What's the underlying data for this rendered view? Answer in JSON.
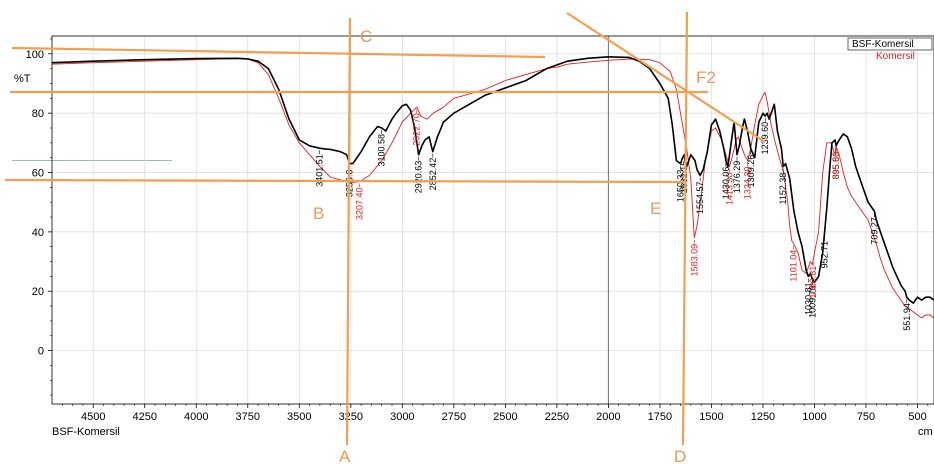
{
  "chart_data": {
    "type": "line",
    "title": "",
    "xlabel": "cm",
    "ylabel": "%T",
    "xlim": [
      4700,
      420
    ],
    "ylim": [
      -18,
      106
    ],
    "x_reversed": true,
    "grid": true,
    "bottom_label": "BSF-Komersil",
    "y_ticks": [
      "100",
      "80",
      "60",
      "40",
      "20",
      "0"
    ],
    "x_ticks": [
      "4500",
      "4250",
      "4000",
      "3750",
      "3500",
      "3250",
      "3000",
      "2750",
      "2500",
      "2250",
      "2000",
      "1750",
      "1500",
      "1250",
      "1000",
      "750",
      "500"
    ],
    "legend": {
      "position": "top-right",
      "entries": [
        "BSF-Komersil",
        "Komersil"
      ]
    },
    "series": [
      {
        "name": "BSF-Komersil",
        "color": "#000000",
        "x": [
          4700,
          4500,
          4250,
          4000,
          3800,
          3750,
          3700,
          3650,
          3600,
          3550,
          3500,
          3450,
          3420,
          3401,
          3380,
          3350,
          3300,
          3270,
          3256,
          3240,
          3200,
          3160,
          3120,
          3100,
          3080,
          3050,
          3030,
          3000,
          2980,
          2960,
          2940,
          2921,
          2905,
          2890,
          2870,
          2852,
          2830,
          2800,
          2750,
          2600,
          2400,
          2300,
          2200,
          2100,
          2000,
          1900,
          1850,
          1800,
          1750,
          1710,
          1690,
          1670,
          1650,
          1640,
          1632,
          1620,
          1600,
          1580,
          1570,
          1555,
          1540,
          1520,
          1500,
          1480,
          1460,
          1440,
          1430,
          1420,
          1400,
          1390,
          1376,
          1365,
          1350,
          1340,
          1325,
          1309,
          1290,
          1270,
          1250,
          1240,
          1230,
          1220,
          1210,
          1195,
          1180,
          1160,
          1152,
          1140,
          1120,
          1100,
          1080,
          1060,
          1040,
          1030,
          1020,
          1010,
          1000,
          980,
          960,
          940,
          925,
          915,
          900,
          895,
          880,
          860,
          840,
          820,
          800,
          780,
          760,
          740,
          720,
          709,
          700,
          680,
          660,
          640,
          620,
          600,
          580,
          560,
          552,
          540,
          520,
          500,
          480,
          460,
          440,
          420
        ],
        "values": [
          97,
          97.5,
          98,
          98.4,
          98.5,
          98.3,
          97.5,
          95,
          88,
          78,
          71,
          69,
          68.5,
          68.2,
          68,
          67.8,
          67,
          66,
          63,
          63,
          67,
          72,
          75.5,
          75,
          74,
          78,
          80,
          82.5,
          83,
          81,
          75,
          66,
          69,
          71,
          72,
          67,
          72,
          77,
          80,
          86,
          91,
          95,
          97.5,
          98.5,
          99,
          98.8,
          97.5,
          95,
          90,
          85,
          76,
          64,
          63,
          65,
          66,
          62,
          66,
          64,
          61,
          59,
          61,
          67,
          76,
          78,
          74,
          68,
          64,
          62,
          72,
          77,
          66,
          69,
          75,
          78,
          74,
          68,
          65,
          77,
          80,
          79,
          80,
          78,
          80,
          83,
          74,
          68,
          62,
          63,
          58,
          47,
          40,
          35,
          27,
          25,
          26,
          24,
          23,
          25,
          33,
          48,
          62,
          70,
          71,
          69,
          71,
          73,
          72,
          68,
          62,
          58,
          54,
          50,
          48,
          47,
          44,
          40,
          36,
          32,
          28,
          25,
          22,
          20,
          18,
          17,
          16,
          18,
          17,
          18,
          18,
          17
        ]
      },
      {
        "name": "Komersil",
        "color": "#e02020",
        "x": [
          4700,
          4500,
          4250,
          4000,
          3800,
          3750,
          3700,
          3650,
          3600,
          3550,
          3500,
          3450,
          3400,
          3350,
          3300,
          3250,
          3207,
          3160,
          3100,
          3050,
          3000,
          2960,
          2930,
          2910,
          2880,
          2850,
          2800,
          2750,
          2700,
          2600,
          2500,
          2400,
          2300,
          2250,
          2200,
          2100,
          2000,
          1900,
          1800,
          1750,
          1700,
          1670,
          1650,
          1620,
          1600,
          1583,
          1570,
          1550,
          1530,
          1500,
          1480,
          1450,
          1430,
          1413,
          1400,
          1380,
          1370,
          1350,
          1340,
          1324,
          1310,
          1290,
          1270,
          1250,
          1240,
          1230,
          1210,
          1190,
          1170,
          1150,
          1130,
          1120,
          1110,
          1101,
          1080,
          1060,
          1040,
          1030,
          1020,
          1010,
          1000,
          980,
          960,
          940,
          920,
          900,
          896,
          880,
          860,
          840,
          820,
          800,
          780,
          760,
          740,
          720,
          700,
          680,
          660,
          640,
          620,
          600,
          580,
          560,
          540,
          520,
          500,
          480,
          460,
          440,
          420
        ],
        "values": [
          96.5,
          97,
          97.5,
          98,
          98.4,
          98.2,
          97,
          93,
          85,
          76,
          70,
          66,
          62,
          58.5,
          57.5,
          56.5,
          57,
          59,
          64,
          70,
          77,
          80,
          82,
          79,
          78,
          80,
          82,
          85,
          86,
          88,
          91,
          93,
          95,
          95.5,
          96.5,
          97.2,
          97.8,
          98.2,
          98,
          97,
          94,
          88,
          80,
          68,
          58,
          38,
          42,
          52,
          64,
          74,
          75,
          71,
          66,
          62,
          65,
          71,
          72,
          68,
          66,
          64,
          68,
          76,
          83,
          86,
          87,
          84,
          76,
          70,
          65,
          60,
          50,
          42,
          37,
          36,
          33,
          27,
          26,
          28,
          30,
          29,
          33,
          40,
          60,
          70,
          70,
          66,
          69,
          66,
          60,
          55,
          52,
          50,
          48,
          46,
          44,
          40,
          36,
          31,
          27,
          24,
          21,
          19,
          17,
          15,
          14,
          13,
          12,
          11,
          12,
          12,
          11
        ]
      }
    ],
    "peak_labels": [
      {
        "text": "3401.51",
        "series": "BSF-Komersil",
        "x": 3401
      },
      {
        "text": "3256.0",
        "series": "BSF-Komersil",
        "x": 3256
      },
      {
        "text": "3207.40",
        "series": "Komersil",
        "x": 3207
      },
      {
        "text": "3100.58",
        "series": "BSF-Komersil",
        "x": 3100
      },
      {
        "text": "2920.63",
        "series": "BSF-Komersil",
        "x": 2921
      },
      {
        "text": "2852.42",
        "series": "BSF-Komersil",
        "x": 2852
      },
      {
        "text": "2922.70",
        "series": "Komersil",
        "x": 2930
      },
      {
        "text": "1650.33",
        "series": "BSF-Komersil",
        "x": 1650
      },
      {
        "text": "1632.15",
        "series": "BSF-Komersil",
        "x": 1632
      },
      {
        "text": "1554.57",
        "series": "BSF-Komersil",
        "x": 1555
      },
      {
        "text": "1583.09",
        "series": "Komersil",
        "x": 1583
      },
      {
        "text": "1430.06",
        "series": "BSF-Komersil",
        "x": 1430
      },
      {
        "text": "1413.30",
        "series": "Komersil",
        "x": 1413
      },
      {
        "text": "1376.29",
        "series": "BSF-Komersil",
        "x": 1376
      },
      {
        "text": "1324.30",
        "series": "Komersil",
        "x": 1324
      },
      {
        "text": "1309.26",
        "series": "BSF-Komersil",
        "x": 1309
      },
      {
        "text": "1239.60",
        "series": "BSF-Komersil",
        "x": 1239
      },
      {
        "text": "1152.38",
        "series": "BSF-Komersil",
        "x": 1152
      },
      {
        "text": "1101.04",
        "series": "Komersil",
        "x": 1101
      },
      {
        "text": "1030.81",
        "series": "BSF-Komersil",
        "x": 1030
      },
      {
        "text": "1009.76",
        "series": "BSF-Komersil",
        "x": 1010
      },
      {
        "text": "1006.81",
        "series": "Komersil",
        "x": 1006
      },
      {
        "text": "952.71",
        "series": "BSF-Komersil",
        "x": 952
      },
      {
        "text": "895.66",
        "series": "BSF-Komersil",
        "x": 895
      },
      {
        "text": "895.86",
        "series": "Komersil",
        "x": 896
      },
      {
        "text": "709.27",
        "series": "BSF-Komersil",
        "x": 709
      },
      {
        "text": "551.94",
        "series": "BSF-Komersil",
        "x": 552
      }
    ],
    "annotations": [
      "A",
      "B",
      "C",
      "D",
      "E",
      "F2"
    ],
    "annotation_color": "#f0a050"
  }
}
